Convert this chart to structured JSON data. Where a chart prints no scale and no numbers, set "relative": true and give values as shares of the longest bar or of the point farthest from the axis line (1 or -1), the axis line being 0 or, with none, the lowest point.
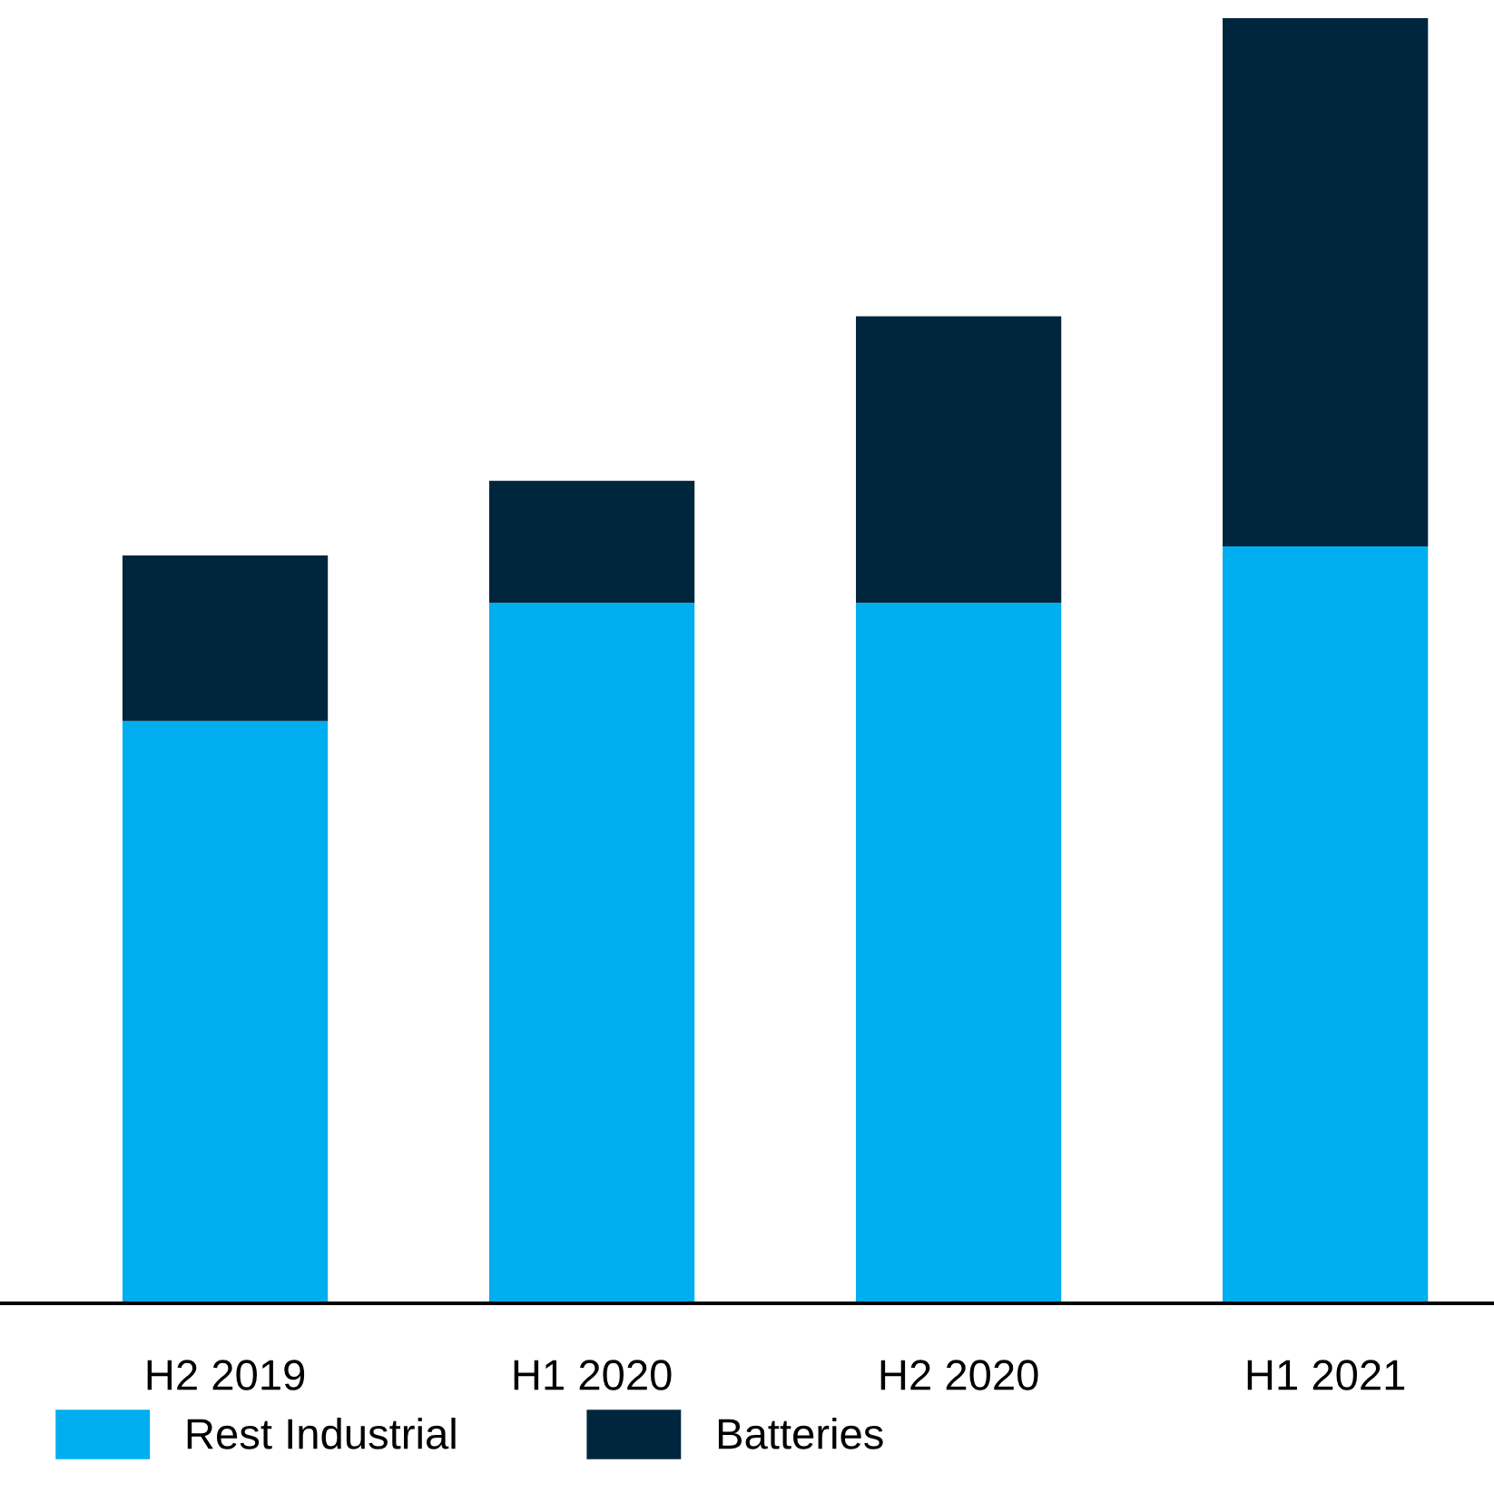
{
  "chart_data": {
    "type": "bar",
    "stacked": true,
    "relative": true,
    "categories": [
      "H2 2019",
      "H1 2020",
      "H2 2020",
      "H1 2021"
    ],
    "series": [
      {
        "name": "Rest Industrial",
        "color": "#00aeef",
        "values": [
          0.453,
          0.545,
          0.545,
          0.589
        ]
      },
      {
        "name": "Batteries",
        "color": "#00263e",
        "values": [
          0.129,
          0.095,
          0.223,
          0.411
        ]
      }
    ],
    "legend": "bottom left",
    "grid": false
  }
}
